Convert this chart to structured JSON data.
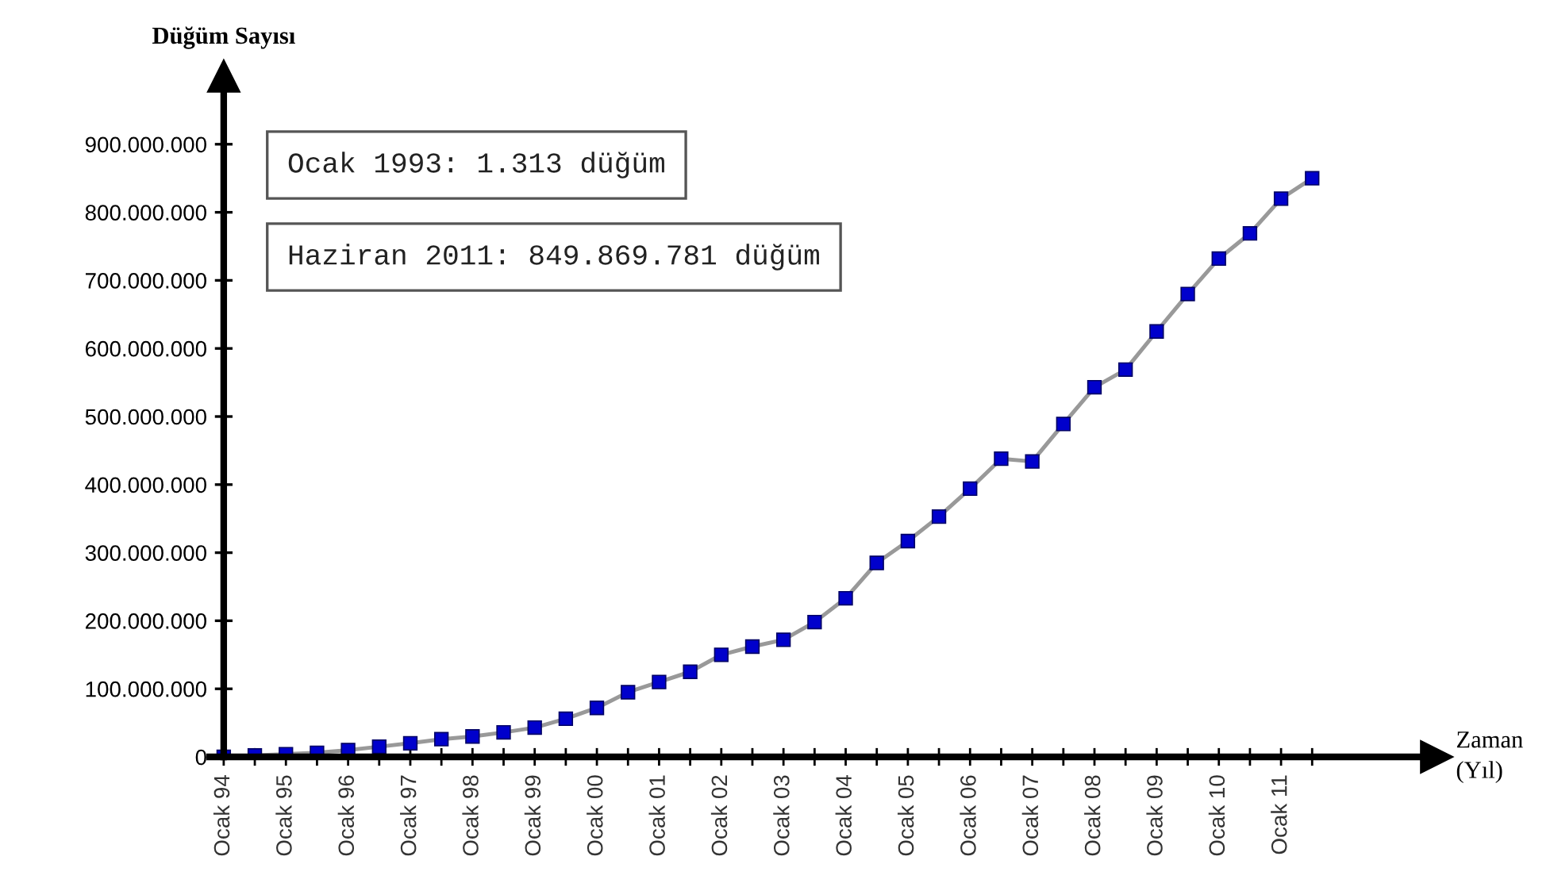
{
  "chart_data": {
    "type": "line",
    "ylabel": "Düğüm Sayısı",
    "annotations": [
      "Ocak 1993: 1.313 düğüm",
      "Haziran 2011: 849.869.781 düğüm",
      "Zaman\n(Yıl)"
    ],
    "categories": [
      "Ocak 94",
      null,
      "Ocak 95",
      null,
      "Ocak 96",
      null,
      "Ocak 97",
      null,
      "Ocak 98",
      null,
      "Ocak 99",
      null,
      "Ocak 00",
      null,
      "Ocak 01",
      null,
      "Ocak 02",
      null,
      "Ocak 03",
      null,
      "Ocak 04",
      null,
      "Ocak 05",
      null,
      "Ocak 06",
      null,
      "Ocak 07",
      null,
      "Ocak 08",
      null,
      "Ocak 09",
      null,
      "Ocak 10",
      null,
      "Ocak 11",
      null
    ],
    "series": [
      {
        "color": "#0000cc",
        "values": [
          0,
          2000000,
          4000000,
          6000000,
          10000000,
          15000000,
          20000000,
          26000000,
          30000000,
          36000000,
          43000000,
          56000000,
          72000000,
          95000000,
          110000000,
          125000000,
          150000000,
          162000000,
          172000000,
          198000000,
          233000000,
          285000000,
          317000000,
          353000000,
          394000000,
          438000000,
          434000000,
          489000000,
          543000000,
          569000000,
          625000000,
          680000000,
          732000000,
          769000000,
          820000000,
          850000000
        ]
      }
    ],
    "ylim": [
      0,
      1000000000
    ],
    "yticks": [
      {
        "value": 0,
        "label": "0"
      },
      {
        "value": 100000000,
        "label": "100.000.000"
      },
      {
        "value": 200000000,
        "label": "200.000.000"
      },
      {
        "value": 300000000,
        "label": "300.000.000"
      },
      {
        "value": 400000000,
        "label": "400.000.000"
      },
      {
        "value": 500000000,
        "label": "500.000.000"
      },
      {
        "value": 600000000,
        "label": "600.000.000"
      },
      {
        "value": 700000000,
        "label": "700.000.000"
      },
      {
        "value": 800000000,
        "label": "800.000.000"
      },
      {
        "value": 900000000,
        "label": "900.000.000"
      }
    ],
    "marker": "square",
    "line_style": "solid",
    "grid": false
  }
}
